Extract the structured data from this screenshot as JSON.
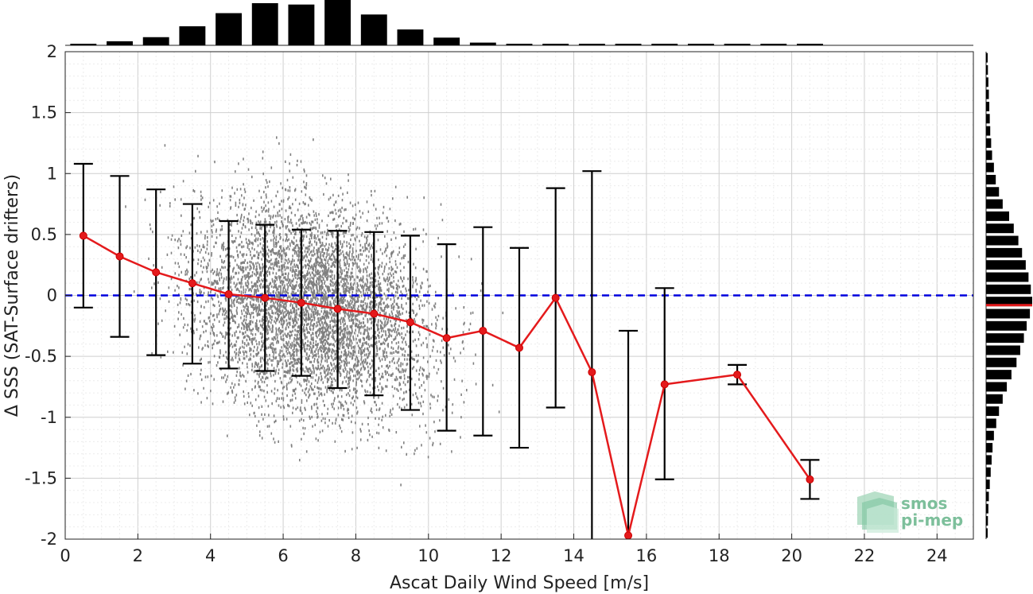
{
  "chart_data": {
    "type": "scatter",
    "xlabel": "Ascat Daily Wind Speed [m/s]",
    "ylabel": "Δ SSS (SAT-Surface drifters)",
    "xlim": [
      0,
      25
    ],
    "ylim": [
      -2,
      2
    ],
    "xticks": [
      "0",
      "2",
      "4",
      "6",
      "8",
      "10",
      "12",
      "14",
      "16",
      "18",
      "20",
      "22",
      "24"
    ],
    "yticks": [
      "-2",
      "-1.5",
      "-1",
      "-0.5",
      "0",
      "0.5",
      "1",
      "1.5",
      "2"
    ],
    "grid": true,
    "reference_line": {
      "y": 0,
      "color": "#0000dd",
      "style": "dashed"
    },
    "scatter_color": "#808080",
    "series": [
      {
        "style": "red line with error bars",
        "color": "#e41a1c",
        "x": [
          0.5,
          1.5,
          2.5,
          3.5,
          4.5,
          5.5,
          6.5,
          7.5,
          8.5,
          9.5,
          10.5,
          11.5,
          12.5,
          13.5,
          14.5,
          15.5,
          16.5,
          18.5,
          20.5
        ],
        "y": [
          0.49,
          0.32,
          0.19,
          0.1,
          0.01,
          -0.02,
          -0.06,
          -0.11,
          -0.15,
          -0.22,
          -0.35,
          -0.29,
          -0.43,
          -0.02,
          -0.63,
          -1.97,
          -0.73,
          -0.65,
          -1.51
        ],
        "err_low": [
          -0.1,
          -0.34,
          -0.49,
          -0.56,
          -0.6,
          -0.62,
          -0.66,
          -0.76,
          -0.82,
          -0.94,
          -1.11,
          -1.15,
          -1.25,
          -0.92,
          -2.0,
          -2.0,
          -1.51,
          -0.73,
          -1.67
        ],
        "err_high": [
          1.08,
          0.98,
          0.87,
          0.75,
          0.61,
          0.58,
          0.54,
          0.53,
          0.52,
          0.49,
          0.42,
          0.56,
          0.39,
          0.88,
          1.02,
          -0.29,
          0.06,
          -0.57,
          -1.35
        ]
      }
    ],
    "top_histogram": {
      "bin_centers": [
        0.5,
        1.5,
        2.5,
        3.5,
        4.5,
        5.5,
        6.5,
        7.5,
        8.5,
        9.5,
        10.5,
        11.5,
        12.5,
        13.5,
        14.5,
        15.5,
        16.5,
        17.5,
        18.5,
        19.5,
        20.5
      ],
      "relative_counts": [
        0.03,
        0.09,
        0.18,
        0.42,
        0.71,
        0.93,
        0.9,
        1.0,
        0.68,
        0.35,
        0.17,
        0.06,
        0.03,
        0.02,
        0.02,
        0.02,
        0.02,
        0.0,
        0.0,
        0.0,
        0.02
      ]
    },
    "right_histogram": {
      "bin_centers": [
        1.95,
        1.85,
        1.75,
        1.65,
        1.55,
        1.45,
        1.35,
        1.25,
        1.15,
        1.05,
        0.95,
        0.85,
        0.75,
        0.65,
        0.55,
        0.45,
        0.35,
        0.25,
        0.15,
        0.05,
        -0.05,
        -0.15,
        -0.25,
        -0.35,
        -0.45,
        -0.55,
        -0.65,
        -0.75,
        -0.85,
        -0.95,
        -1.05,
        -1.15,
        -1.25,
        -1.35,
        -1.45,
        -1.55,
        -1.65,
        -1.75,
        -1.85,
        -1.95
      ],
      "relative_counts": [
        0.03,
        0.04,
        0.05,
        0.06,
        0.07,
        0.08,
        0.09,
        0.11,
        0.13,
        0.17,
        0.21,
        0.28,
        0.36,
        0.5,
        0.6,
        0.7,
        0.78,
        0.86,
        0.92,
        0.97,
        1.0,
        0.95,
        0.88,
        0.82,
        0.74,
        0.66,
        0.55,
        0.45,
        0.36,
        0.28,
        0.22,
        0.17,
        0.14,
        0.12,
        0.1,
        0.08,
        0.06,
        0.05,
        0.04,
        0.03
      ],
      "mean_marker_y": -0.08,
      "mean_marker_color": "#e41a1c"
    }
  },
  "logo": {
    "line1": "smos",
    "line2": "pi-mep"
  }
}
